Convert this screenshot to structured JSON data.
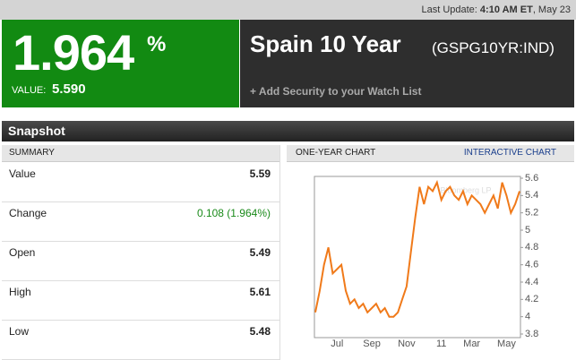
{
  "header": {
    "last_update_label": "Last Update:",
    "last_update_time": "4:10 AM ET",
    "last_update_date": ", May 23"
  },
  "quote": {
    "yield": "1.964",
    "pct_sign": "%",
    "value_label": "VALUE:",
    "value": "5.590"
  },
  "security": {
    "name": "Spain 10 Year",
    "ticker": "(GSPG10YR:IND)",
    "watch_link": "+ Add Security to your Watch List"
  },
  "snapshot": {
    "title": "Snapshot",
    "summary_header": "SUMMARY",
    "rows": [
      {
        "label": "Value",
        "value": "5.59"
      },
      {
        "label": "Change",
        "value": "0.108 (1.964%)"
      },
      {
        "label": "Open",
        "value": "5.49"
      },
      {
        "label": "High",
        "value": "5.61"
      },
      {
        "label": "Low",
        "value": "5.48"
      }
    ]
  },
  "chart_panel": {
    "header": "ONE-YEAR CHART",
    "link": "INTERACTIVE CHART"
  },
  "chart_data": {
    "type": "line",
    "watermark": "Bloomberg LP",
    "categories": [
      null,
      null,
      null,
      null,
      null,
      "Jul",
      null,
      null,
      null,
      null,
      null,
      null,
      null,
      "Sep",
      null,
      null,
      null,
      null,
      null,
      null,
      null,
      "Nov",
      null,
      null,
      null,
      null,
      null,
      null,
      null,
      "11",
      null,
      null,
      null,
      null,
      null,
      null,
      "Mar",
      null,
      null,
      null,
      null,
      null,
      null,
      null,
      "May",
      null,
      null,
      null
    ],
    "series": [
      {
        "color": "#f07a1a",
        "values": [
          4.05,
          4.3,
          4.6,
          4.8,
          4.5,
          4.55,
          4.6,
          4.3,
          4.15,
          4.2,
          4.1,
          4.15,
          4.05,
          4.1,
          4.15,
          4.05,
          4.1,
          4.0,
          4.0,
          4.05,
          4.2,
          4.35,
          4.75,
          5.15,
          5.5,
          5.3,
          5.5,
          5.45,
          5.55,
          5.35,
          5.45,
          5.5,
          5.4,
          5.35,
          5.45,
          5.3,
          5.4,
          5.35,
          5.3,
          5.2,
          5.3,
          5.4,
          5.25,
          5.55,
          5.4,
          5.2,
          5.3,
          5.45
        ]
      }
    ],
    "ylim": [
      3.8,
      5.6
    ],
    "yticks": [
      3.8,
      4,
      4.2,
      4.4,
      4.6,
      4.8,
      5,
      5.2,
      5.4,
      5.6
    ]
  }
}
